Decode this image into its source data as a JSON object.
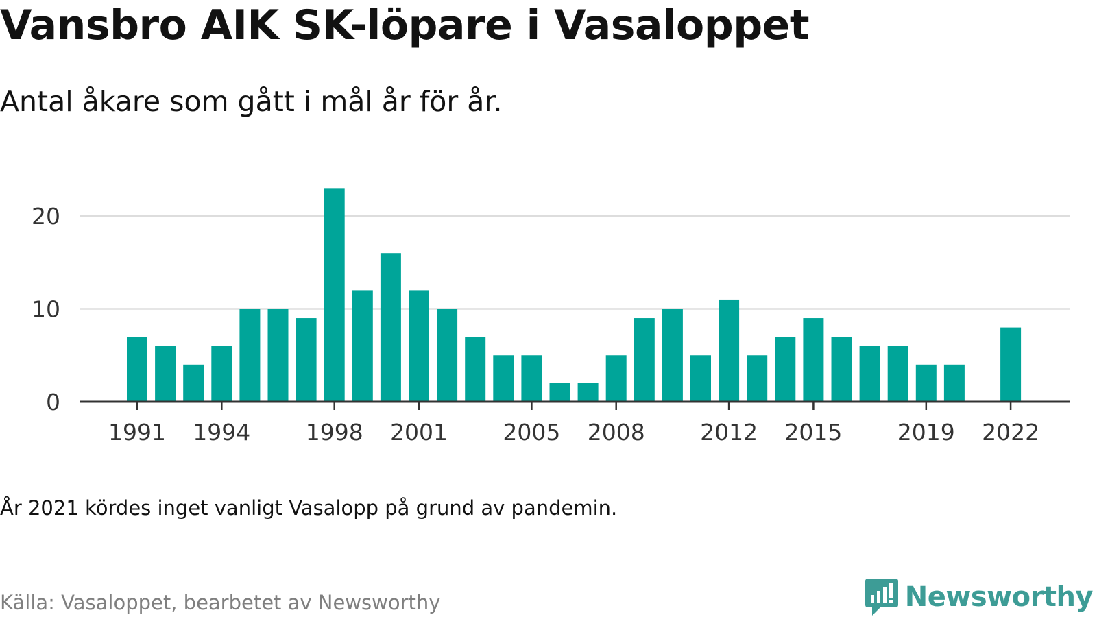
{
  "title": "Vansbro AIK SK-löpare i Vasaloppet",
  "subtitle": "Antal åkare som gått i mål år för år.",
  "note": "År 2021 kördes inget vanligt Vasalopp på grund av pandemin.",
  "source": "Källa: Vasaloppet, bearbetet av Newsworthy",
  "brand": {
    "name": "Newsworthy",
    "logo_icon": "newsworthy-logo-icon"
  },
  "colors": {
    "bar": "#00a599",
    "grid": "#dddddd",
    "axis": "#333333",
    "brand": "#3d9c96"
  },
  "chart_data": {
    "type": "bar",
    "xlabel": "",
    "ylabel": "",
    "x": [
      1991,
      1992,
      1993,
      1994,
      1995,
      1996,
      1997,
      1998,
      1999,
      2000,
      2001,
      2002,
      2003,
      2004,
      2005,
      2006,
      2007,
      2008,
      2009,
      2010,
      2011,
      2012,
      2013,
      2014,
      2015,
      2016,
      2017,
      2018,
      2019,
      2020,
      2021,
      2022
    ],
    "values": [
      7,
      6,
      4,
      6,
      10,
      10,
      9,
      23,
      12,
      16,
      12,
      10,
      7,
      5,
      5,
      2,
      2,
      5,
      9,
      10,
      5,
      11,
      5,
      7,
      9,
      7,
      6,
      6,
      4,
      4,
      null,
      8
    ],
    "x_tick_labels": [
      "1991",
      "1994",
      "1998",
      "2001",
      "2005",
      "2008",
      "2012",
      "2015",
      "2019",
      "2022"
    ],
    "y_ticks": [
      0,
      10,
      20
    ],
    "ylim": [
      0,
      24
    ],
    "grid": true,
    "legend": "none"
  }
}
